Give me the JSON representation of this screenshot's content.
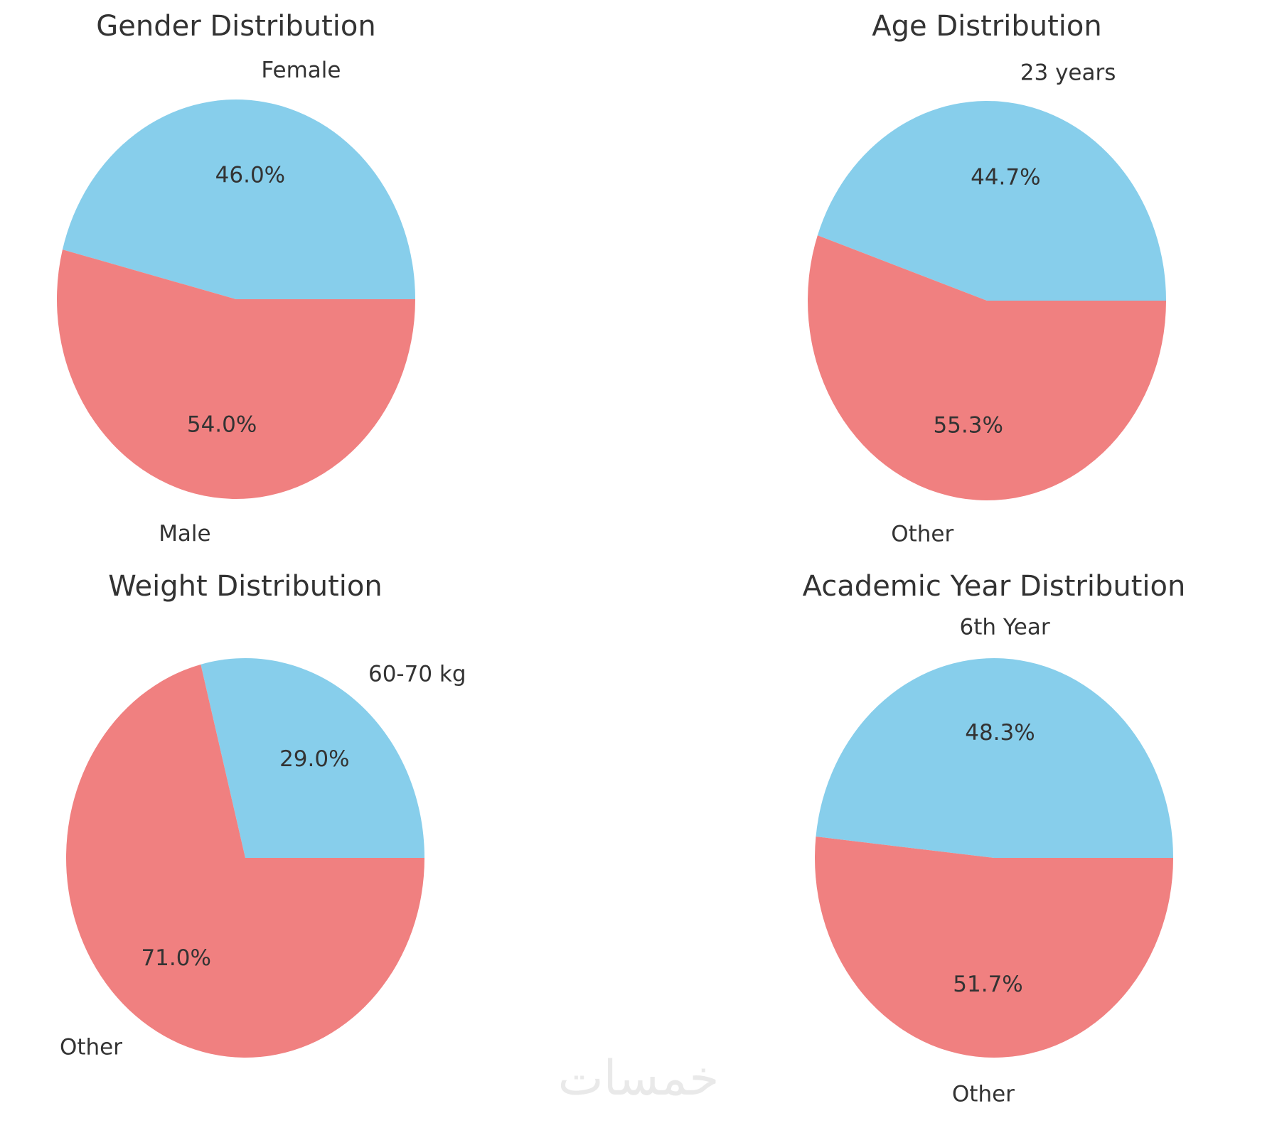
{
  "figure": {
    "background": "#ffffff",
    "text_color": "#333333"
  },
  "watermark": {
    "text": "خمسات",
    "color": "#e9e9e9"
  },
  "chart_data": [
    {
      "type": "pie",
      "title": "Gender Distribution",
      "labels": [
        "Female",
        "Male"
      ],
      "values": [
        46.0,
        54.0
      ],
      "pct_labels": [
        "46.0%",
        "54.0%"
      ],
      "colors": [
        "#87CEEB",
        "#F08080"
      ],
      "start_angle_deg": 0,
      "direction": "counterclockwise",
      "label_position": "outside",
      "pct_position": "inside",
      "legend": "none"
    },
    {
      "type": "pie",
      "title": "Age Distribution",
      "labels": [
        "23 years",
        "Other"
      ],
      "values": [
        44.7,
        55.3
      ],
      "pct_labels": [
        "44.7%",
        "55.3%"
      ],
      "colors": [
        "#87CEEB",
        "#F08080"
      ],
      "start_angle_deg": 0,
      "direction": "counterclockwise",
      "label_position": "outside",
      "pct_position": "inside",
      "legend": "none"
    },
    {
      "type": "pie",
      "title": "Weight Distribution",
      "labels": [
        "60-70 kg",
        "Other"
      ],
      "values": [
        29.0,
        71.0
      ],
      "pct_labels": [
        "29.0%",
        "71.0%"
      ],
      "colors": [
        "#87CEEB",
        "#F08080"
      ],
      "start_angle_deg": 0,
      "direction": "counterclockwise",
      "label_position": "outside",
      "pct_position": "inside",
      "legend": "none"
    },
    {
      "type": "pie",
      "title": "Academic Year Distribution",
      "labels": [
        "6th Year",
        "Other"
      ],
      "values": [
        48.3,
        51.7
      ],
      "pct_labels": [
        "48.3%",
        "51.7%"
      ],
      "colors": [
        "#87CEEB",
        "#F08080"
      ],
      "start_angle_deg": 0,
      "direction": "counterclockwise",
      "label_position": "outside",
      "pct_position": "inside",
      "legend": "none"
    }
  ]
}
